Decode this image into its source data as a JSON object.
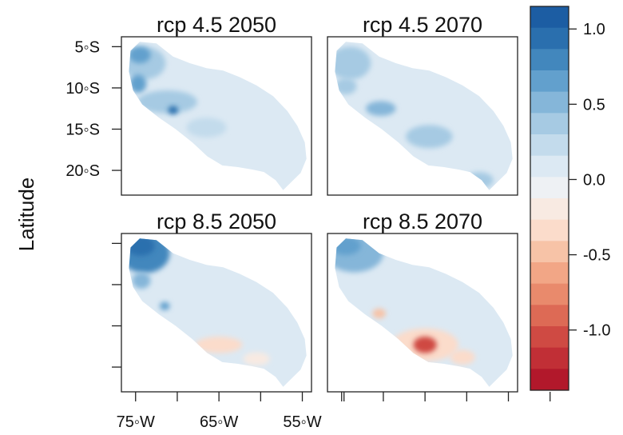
{
  "chart_data": {
    "type": "heatmap",
    "ylabel": "Latitude",
    "panels": [
      {
        "title": "rcp 4.5 2050",
        "scenario": "rcp 4.5",
        "year": 2050
      },
      {
        "title": "rcp 4.5 2070",
        "scenario": "rcp 4.5",
        "year": 2070
      },
      {
        "title": "rcp 8.5 2050",
        "scenario": "rcp 8.5",
        "year": 2050
      },
      {
        "title": "rcp 8.5 2070",
        "scenario": "rcp 8.5",
        "year": 2070
      }
    ],
    "x_ticks": [
      {
        "value": -75,
        "label": "75◦W"
      },
      {
        "value": -70,
        "label": ""
      },
      {
        "value": -65,
        "label": "65◦W"
      },
      {
        "value": -60,
        "label": ""
      },
      {
        "value": -55,
        "label": "55◦W"
      },
      {
        "value": -50,
        "label": ""
      }
    ],
    "y_ticks": [
      {
        "value": -5,
        "label": "5◦S"
      },
      {
        "value": -10,
        "label": "10◦S"
      },
      {
        "value": -15,
        "label": "15◦S"
      },
      {
        "value": -20,
        "label": "20◦S"
      }
    ],
    "xlim": [
      -76.7,
      -53.9
    ],
    "ylim": [
      -23.0,
      -3.8
    ],
    "colorbar": {
      "range": [
        -1.4,
        1.15
      ],
      "ticks": [
        {
          "value": 1.0,
          "label": "1.0"
        },
        {
          "value": 0.5,
          "label": "0.5"
        },
        {
          "value": 0.0,
          "label": "0.0"
        },
        {
          "value": -0.5,
          "label": "-0.5"
        },
        {
          "value": -1.0,
          "label": "-1.0"
        }
      ],
      "colors": [
        "#b2182b",
        "#c12f36",
        "#cf4a43",
        "#dd6a55",
        "#e98a6c",
        "#f2a686",
        "#f7c3a7",
        "#fbdccb",
        "#f8eae2",
        "#eef1f4",
        "#dce9f3",
        "#c3dbec",
        "#a6cae3",
        "#85b6d9",
        "#62a0cd",
        "#4287bd",
        "#2a6fae",
        "#1c5da3"
      ]
    },
    "region_outline": [
      [
        -75.6,
        -5.5
      ],
      [
        -74.5,
        -4.4
      ],
      [
        -72.5,
        -4.6
      ],
      [
        -70.5,
        -6.2
      ],
      [
        -68.5,
        -7.0
      ],
      [
        -66.5,
        -7.6
      ],
      [
        -64.5,
        -7.9
      ],
      [
        -62.5,
        -8.7
      ],
      [
        -60.5,
        -9.7
      ],
      [
        -58.5,
        -11.0
      ],
      [
        -56.8,
        -12.8
      ],
      [
        -55.6,
        -14.6
      ],
      [
        -54.7,
        -16.6
      ],
      [
        -54.5,
        -18.6
      ],
      [
        -55.2,
        -20.3
      ],
      [
        -56.3,
        -21.4
      ],
      [
        -57.3,
        -22.4
      ],
      [
        -58.2,
        -21.2
      ],
      [
        -59.6,
        -20.2
      ],
      [
        -61.0,
        -19.9
      ],
      [
        -62.8,
        -19.6
      ],
      [
        -64.6,
        -19.4
      ],
      [
        -66.4,
        -18.3
      ],
      [
        -68.2,
        -16.6
      ],
      [
        -70.2,
        -15.0
      ],
      [
        -72.2,
        -13.6
      ],
      [
        -74.2,
        -12.0
      ],
      [
        -75.3,
        -10.3
      ],
      [
        -75.8,
        -8.0
      ]
    ],
    "anomaly_blobs": [
      [
        {
          "lon": -74.0,
          "lat": -7.0,
          "rx": 2.6,
          "ry": 2.0,
          "value": 0.4
        },
        {
          "lon": -74.5,
          "lat": -6.0,
          "rx": 1.3,
          "ry": 1.0,
          "value": 0.6
        },
        {
          "lon": -74.7,
          "lat": -9.5,
          "rx": 1.0,
          "ry": 1.1,
          "value": 0.65
        },
        {
          "lon": -71.2,
          "lat": -11.7,
          "rx": 3.6,
          "ry": 1.4,
          "value": 0.35
        },
        {
          "lon": -70.5,
          "lat": -12.7,
          "rx": 0.6,
          "ry": 0.5,
          "value": 0.9
        },
        {
          "lon": -66.5,
          "lat": -14.8,
          "rx": 2.4,
          "ry": 1.2,
          "value": 0.25
        }
      ],
      [
        {
          "lon": -74.0,
          "lat": -7.0,
          "rx": 2.5,
          "ry": 2.0,
          "value": 0.3
        },
        {
          "lon": -74.5,
          "lat": -9.8,
          "rx": 1.3,
          "ry": 1.0,
          "value": 0.4
        },
        {
          "lon": -70.3,
          "lat": -12.5,
          "rx": 1.8,
          "ry": 0.9,
          "value": 0.55
        },
        {
          "lon": -64.5,
          "lat": -15.9,
          "rx": 2.8,
          "ry": 1.4,
          "value": 0.35
        },
        {
          "lon": -58.5,
          "lat": -21.2,
          "rx": 1.7,
          "ry": 1.0,
          "value": 0.4
        }
      ],
      [
        {
          "lon": -73.9,
          "lat": -6.2,
          "rx": 3.0,
          "ry": 2.4,
          "value": 0.75
        },
        {
          "lon": -74.4,
          "lat": -5.3,
          "rx": 1.7,
          "ry": 1.2,
          "value": 1.0
        },
        {
          "lon": -74.3,
          "lat": -9.5,
          "rx": 1.1,
          "ry": 1.0,
          "value": 0.5
        },
        {
          "lon": -71.5,
          "lat": -12.6,
          "rx": 0.6,
          "ry": 0.5,
          "value": 0.7
        },
        {
          "lon": -65.0,
          "lat": -17.3,
          "rx": 2.8,
          "ry": 1.0,
          "value": -0.3
        },
        {
          "lon": -60.5,
          "lat": -19.0,
          "rx": 1.6,
          "ry": 0.8,
          "value": -0.15
        }
      ],
      [
        {
          "lon": -73.5,
          "lat": -6.2,
          "rx": 3.5,
          "ry": 2.3,
          "value": 0.45
        },
        {
          "lon": -74.5,
          "lat": -5.3,
          "rx": 1.8,
          "ry": 1.1,
          "value": 0.6
        },
        {
          "lon": -70.5,
          "lat": -13.5,
          "rx": 0.8,
          "ry": 0.6,
          "value": -0.5
        },
        {
          "lon": -65.0,
          "lat": -17.3,
          "rx": 4.0,
          "ry": 2.0,
          "value": -0.3
        },
        {
          "lon": -65.0,
          "lat": -17.3,
          "rx": 1.4,
          "ry": 1.0,
          "value": -1.0
        },
        {
          "lon": -60.5,
          "lat": -18.8,
          "rx": 1.5,
          "ry": 0.9,
          "value": -0.35
        }
      ]
    ]
  }
}
